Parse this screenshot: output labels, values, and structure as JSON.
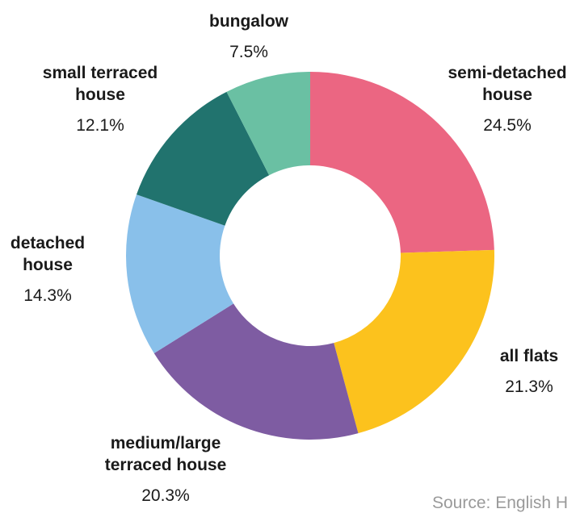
{
  "chart_data": {
    "type": "pie",
    "title": "",
    "donut": true,
    "series": [
      {
        "label": "semi-detached house",
        "label_lines": [
          "semi-detached",
          "house"
        ],
        "value": 24.5,
        "value_label": "24.5%",
        "color": "#EB6682"
      },
      {
        "label": "all flats",
        "label_lines": [
          "all flats"
        ],
        "value": 21.3,
        "value_label": "21.3%",
        "color": "#FCC21D"
      },
      {
        "label": "medium/large terraced house",
        "label_lines": [
          "medium/large",
          "terraced house"
        ],
        "value": 20.3,
        "value_label": "20.3%",
        "color": "#7E5CA2"
      },
      {
        "label": "detached house",
        "label_lines": [
          "detached",
          "house"
        ],
        "value": 14.3,
        "value_label": "14.3%",
        "color": "#89C0EA"
      },
      {
        "label": "small terraced house",
        "label_lines": [
          "small terraced",
          "house"
        ],
        "value": 12.1,
        "value_label": "12.1%",
        "color": "#21736E"
      },
      {
        "label": "bungalow",
        "label_lines": [
          "bungalow"
        ],
        "value": 7.5,
        "value_label": "7.5%",
        "color": "#6AC0A3"
      }
    ]
  },
  "source_text": "Source: English H"
}
